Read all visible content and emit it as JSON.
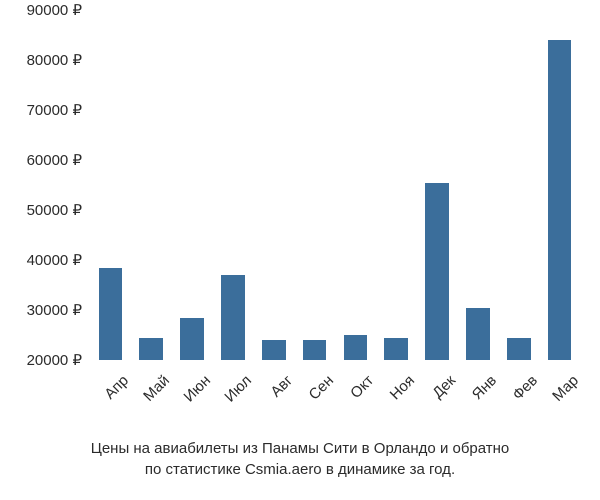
{
  "chart": {
    "type": "bar",
    "background_color": "#ffffff",
    "text_color": "#2b2b2b",
    "axis_fontsize": 15,
    "caption_fontsize": 15,
    "y_axis": {
      "min": 20000,
      "max": 90000,
      "tick_step": 10000,
      "suffix": " ₽",
      "ticks": [
        20000,
        30000,
        40000,
        50000,
        60000,
        70000,
        80000,
        90000
      ]
    },
    "x_labels_rotation_deg": -45,
    "bar_color": "#3b6e9b",
    "bar_width_ratio": 0.58,
    "categories": [
      "Апр",
      "Май",
      "Июн",
      "Июл",
      "Авг",
      "Сен",
      "Окт",
      "Ноя",
      "Дек",
      "Янв",
      "Фев",
      "Мар"
    ],
    "values": [
      38500,
      24500,
      28500,
      37000,
      24000,
      24000,
      25000,
      24500,
      55500,
      30500,
      24500,
      84000
    ],
    "caption_line1": "Цены на авиабилеты из Панамы Сити в Орландо и обратно",
    "caption_line2": "по статистике Csmia.aero в динамике за год."
  }
}
